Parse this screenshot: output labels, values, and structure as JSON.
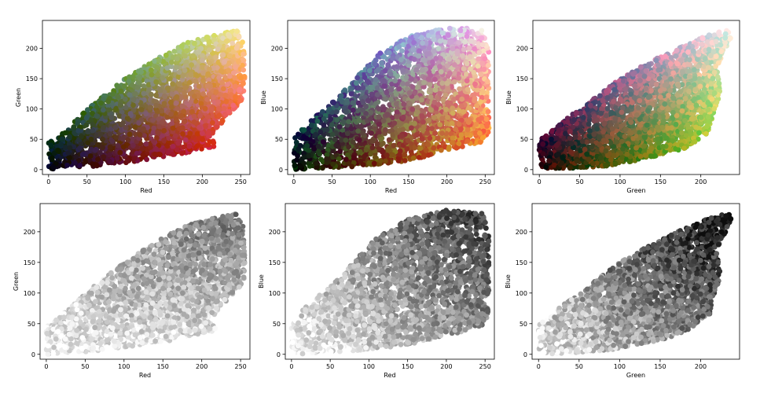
{
  "chart_data": [
    {
      "type": "scatter",
      "xlabel": "Red",
      "ylabel": "Green",
      "xlim": [
        -8,
        262
      ],
      "ylim": [
        -8,
        246
      ],
      "xticks": [
        0,
        50,
        100,
        150,
        200,
        250
      ],
      "yticks": [
        0,
        50,
        100,
        150,
        200
      ],
      "coloring": "rgb",
      "grid": false,
      "envelope": [
        [
          0,
          0
        ],
        [
          0,
          44
        ],
        [
          30,
          75
        ],
        [
          60,
          110
        ],
        [
          100,
          150
        ],
        [
          150,
          190
        ],
        [
          180,
          210
        ],
        [
          215,
          222
        ],
        [
          245,
          230
        ],
        [
          255,
          205
        ],
        [
          255,
          120
        ],
        [
          245,
          105
        ],
        [
          210,
          55
        ],
        [
          220,
          38
        ],
        [
          150,
          20
        ],
        [
          60,
          5
        ],
        [
          0,
          0
        ]
      ]
    },
    {
      "type": "scatter",
      "xlabel": "Red",
      "ylabel": "Blue",
      "xlim": [
        -8,
        262
      ],
      "ylim": [
        -8,
        246
      ],
      "xticks": [
        0,
        50,
        100,
        150,
        200,
        250
      ],
      "yticks": [
        0,
        50,
        100,
        150,
        200
      ],
      "coloring": "rgb",
      "grid": false,
      "envelope": [
        [
          0,
          0
        ],
        [
          0,
          50
        ],
        [
          20,
          80
        ],
        [
          50,
          110
        ],
        [
          80,
          150
        ],
        [
          110,
          190
        ],
        [
          150,
          220
        ],
        [
          200,
          235
        ],
        [
          245,
          232
        ],
        [
          255,
          205
        ],
        [
          255,
          60
        ],
        [
          245,
          45
        ],
        [
          200,
          30
        ],
        [
          150,
          15
        ],
        [
          80,
          5
        ],
        [
          0,
          0
        ]
      ]
    },
    {
      "type": "scatter",
      "xlabel": "Green",
      "ylabel": "Blue",
      "xlim": [
        -8,
        248
      ],
      "ylim": [
        -8,
        246
      ],
      "xticks": [
        0,
        50,
        100,
        150,
        200
      ],
      "yticks": [
        0,
        50,
        100,
        150,
        200
      ],
      "coloring": "rgb",
      "grid": false,
      "envelope": [
        [
          0,
          0
        ],
        [
          0,
          48
        ],
        [
          30,
          80
        ],
        [
          60,
          110
        ],
        [
          100,
          150
        ],
        [
          140,
          180
        ],
        [
          180,
          205
        ],
        [
          215,
          225
        ],
        [
          235,
          230
        ],
        [
          238,
          220
        ],
        [
          220,
          170
        ],
        [
          225,
          130
        ],
        [
          215,
          90
        ],
        [
          210,
          60
        ],
        [
          180,
          35
        ],
        [
          140,
          20
        ],
        [
          80,
          5
        ],
        [
          0,
          0
        ]
      ]
    },
    {
      "type": "scatter",
      "xlabel": "Red",
      "ylabel": "Green",
      "xlim": [
        -8,
        262
      ],
      "ylim": [
        -8,
        246
      ],
      "xticks": [
        0,
        50,
        100,
        150,
        200,
        250
      ],
      "yticks": [
        0,
        50,
        100,
        150,
        200
      ],
      "coloring": "grayscale",
      "grid": false,
      "envelope": [
        [
          0,
          0
        ],
        [
          0,
          44
        ],
        [
          30,
          75
        ],
        [
          60,
          110
        ],
        [
          100,
          150
        ],
        [
          150,
          190
        ],
        [
          180,
          210
        ],
        [
          215,
          222
        ],
        [
          245,
          230
        ],
        [
          255,
          205
        ],
        [
          255,
          120
        ],
        [
          245,
          105
        ],
        [
          210,
          55
        ],
        [
          220,
          38
        ],
        [
          150,
          20
        ],
        [
          60,
          5
        ],
        [
          0,
          0
        ]
      ]
    },
    {
      "type": "scatter",
      "xlabel": "Red",
      "ylabel": "Blue",
      "xlim": [
        -8,
        262
      ],
      "ylim": [
        -8,
        246
      ],
      "xticks": [
        0,
        50,
        100,
        150,
        200,
        250
      ],
      "yticks": [
        0,
        50,
        100,
        150,
        200
      ],
      "coloring": "grayscale",
      "grid": false,
      "envelope": [
        [
          0,
          0
        ],
        [
          0,
          50
        ],
        [
          20,
          80
        ],
        [
          50,
          110
        ],
        [
          80,
          150
        ],
        [
          110,
          190
        ],
        [
          150,
          220
        ],
        [
          200,
          235
        ],
        [
          245,
          232
        ],
        [
          255,
          205
        ],
        [
          255,
          60
        ],
        [
          245,
          45
        ],
        [
          200,
          30
        ],
        [
          150,
          15
        ],
        [
          80,
          5
        ],
        [
          0,
          0
        ]
      ]
    },
    {
      "type": "scatter",
      "xlabel": "Green",
      "ylabel": "Blue",
      "xlim": [
        -8,
        248
      ],
      "ylim": [
        -8,
        246
      ],
      "xticks": [
        0,
        50,
        100,
        150,
        200
      ],
      "yticks": [
        0,
        50,
        100,
        150,
        200
      ],
      "coloring": "grayscale",
      "grid": false,
      "envelope": [
        [
          0,
          0
        ],
        [
          0,
          48
        ],
        [
          30,
          80
        ],
        [
          60,
          110
        ],
        [
          100,
          150
        ],
        [
          140,
          180
        ],
        [
          180,
          205
        ],
        [
          215,
          225
        ],
        [
          235,
          230
        ],
        [
          238,
          220
        ],
        [
          220,
          170
        ],
        [
          225,
          130
        ],
        [
          215,
          90
        ],
        [
          210,
          60
        ],
        [
          180,
          35
        ],
        [
          140,
          20
        ],
        [
          80,
          5
        ],
        [
          0,
          0
        ]
      ]
    }
  ]
}
